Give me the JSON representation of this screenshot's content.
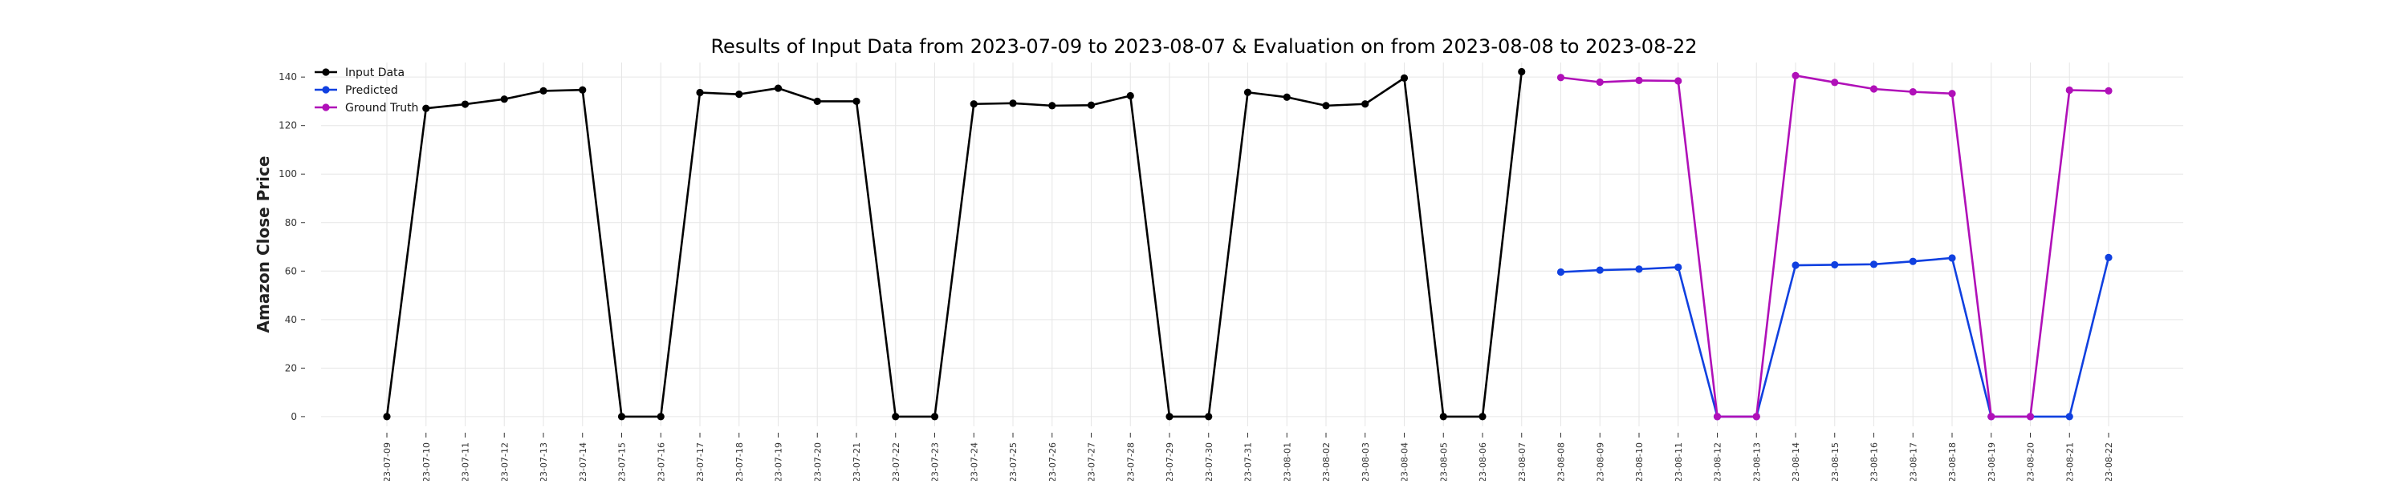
{
  "chart_data": {
    "type": "line",
    "title": "Results of Input Data from 2023-07-09 to 2023-08-07 & Evaluation on from 2023-08-08 to 2023-08-22",
    "xlabel": "",
    "ylabel": "Amazon Close Price",
    "ylim": [
      -4,
      146
    ],
    "yticks": [
      0,
      20,
      40,
      60,
      80,
      100,
      120,
      140
    ],
    "grid": true,
    "legend": "top-left",
    "x_tick_labels": [
      "2023-07-09",
      "2023-07-10",
      "2023-07-11",
      "2023-07-12",
      "2023-07-13",
      "2023-07-14",
      "2023-07-15",
      "2023-07-16",
      "2023-07-17",
      "2023-07-18",
      "2023-07-19",
      "2023-07-20",
      "2023-07-21",
      "2023-07-22",
      "2023-07-23",
      "2023-07-24",
      "2023-07-25",
      "2023-07-26",
      "2023-07-27",
      "2023-07-28",
      "2023-07-29",
      "2023-07-30",
      "2023-07-31",
      "2023-08-01",
      "2023-08-02",
      "2023-08-03",
      "2023-08-04",
      "2023-08-05",
      "2023-08-06",
      "2023-08-07",
      "2023-08-08",
      "2023-08-09",
      "2023-08-10",
      "2023-08-11",
      "2023-08-12",
      "2023-08-13",
      "2023-08-14",
      "2023-08-15",
      "2023-08-16",
      "2023-08-17",
      "2023-08-18",
      "2023-08-19",
      "2023-08-20",
      "2023-08-21",
      "2023-08-22"
    ],
    "series": [
      {
        "name": "Input Data",
        "color": "#000000",
        "x": [
          "2023-07-09",
          "2023-07-10",
          "2023-07-11",
          "2023-07-12",
          "2023-07-13",
          "2023-07-14",
          "2023-07-15",
          "2023-07-16",
          "2023-07-17",
          "2023-07-18",
          "2023-07-19",
          "2023-07-20",
          "2023-07-21",
          "2023-07-22",
          "2023-07-23",
          "2023-07-24",
          "2023-07-25",
          "2023-07-26",
          "2023-07-27",
          "2023-07-28",
          "2023-07-29",
          "2023-07-30",
          "2023-07-31",
          "2023-08-01",
          "2023-08-02",
          "2023-08-03",
          "2023-08-04",
          "2023-08-05",
          "2023-08-06",
          "2023-08-07"
        ],
        "values": [
          0,
          127.1,
          128.8,
          130.9,
          134.3,
          134.7,
          0,
          0,
          133.6,
          132.9,
          135.4,
          130.0,
          130.0,
          0,
          0,
          128.9,
          129.2,
          128.2,
          128.4,
          132.3,
          0,
          0,
          133.7,
          131.7,
          128.2,
          128.9,
          139.6,
          0,
          0,
          142.2
        ]
      },
      {
        "name": "Predicted",
        "color": "#1040e0",
        "x": [
          "2023-08-08",
          "2023-08-09",
          "2023-08-10",
          "2023-08-11",
          "2023-08-12",
          "2023-08-13",
          "2023-08-14",
          "2023-08-15",
          "2023-08-16",
          "2023-08-17",
          "2023-08-18",
          "2023-08-19",
          "2023-08-20",
          "2023-08-21",
          "2023-08-22"
        ],
        "values": [
          59.6,
          60.4,
          60.8,
          61.6,
          0,
          0,
          62.4,
          62.6,
          62.8,
          64.0,
          65.4,
          0,
          0,
          0,
          65.6
        ]
      },
      {
        "name": "Ground Truth",
        "color": "#b010b8",
        "x": [
          "2023-08-08",
          "2023-08-09",
          "2023-08-10",
          "2023-08-11",
          "2023-08-12",
          "2023-08-13",
          "2023-08-14",
          "2023-08-15",
          "2023-08-16",
          "2023-08-17",
          "2023-08-18",
          "2023-08-19",
          "2023-08-20",
          "2023-08-21",
          "2023-08-22"
        ],
        "values": [
          139.8,
          137.9,
          138.6,
          138.4,
          0,
          0,
          140.6,
          137.8,
          135.1,
          133.9,
          133.2,
          0,
          0,
          134.6,
          134.3
        ]
      }
    ]
  }
}
